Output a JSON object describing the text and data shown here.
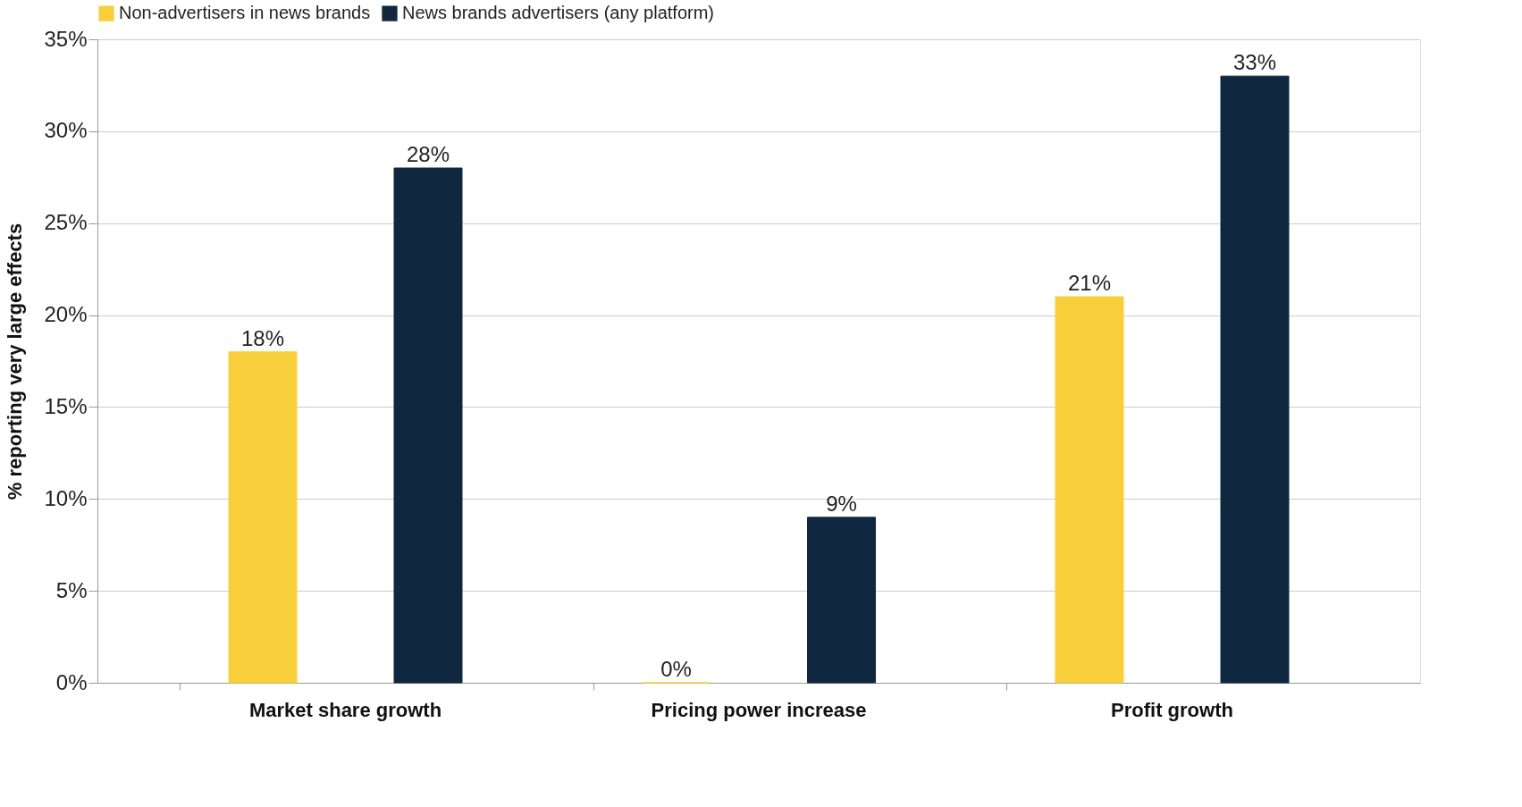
{
  "chart_data": {
    "type": "bar",
    "ylabel": "% reporting very large effects",
    "categories": [
      "Market share growth",
      "Pricing power increase",
      "Profit growth"
    ],
    "series": [
      {
        "name": "Non-advertisers in news brands",
        "color": "#f8cf3a",
        "values": [
          18,
          0,
          21
        ],
        "value_labels": [
          "18%",
          "0%",
          "21%"
        ]
      },
      {
        "name": "News brands advertisers (any platform)",
        "color": "#0f2840",
        "values": [
          28,
          9,
          33
        ],
        "value_labels": [
          "28%",
          "9%",
          "33%"
        ]
      }
    ],
    "ylim": [
      0,
      35
    ],
    "yticks": [
      {
        "value": 0,
        "label": "0%"
      },
      {
        "value": 5,
        "label": "5%"
      },
      {
        "value": 10,
        "label": "10%"
      },
      {
        "value": 15,
        "label": "15%"
      },
      {
        "value": 20,
        "label": "20%"
      },
      {
        "value": 25,
        "label": "25%"
      },
      {
        "value": 30,
        "label": "30%"
      },
      {
        "value": 35,
        "label": "35%"
      }
    ],
    "grid": "y",
    "legend": "top"
  }
}
